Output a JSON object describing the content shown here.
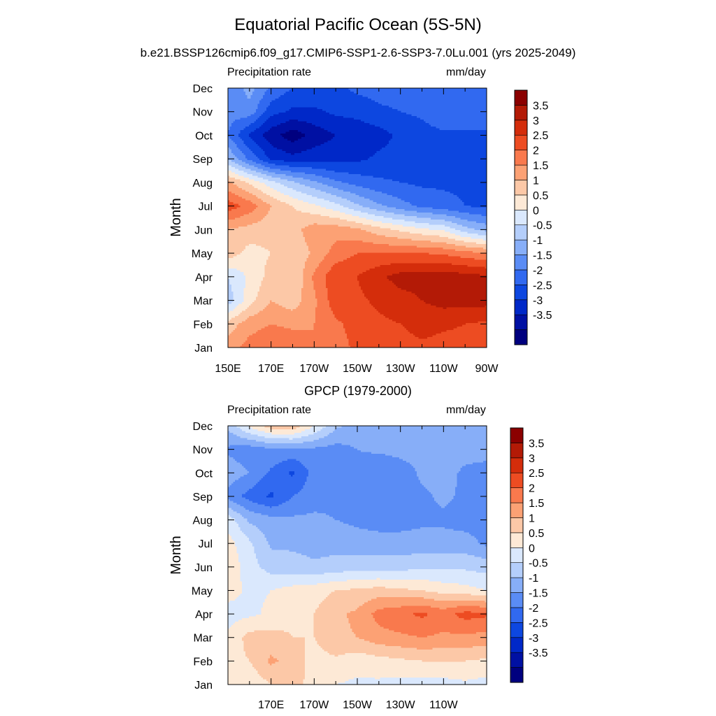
{
  "title": "Equatorial Pacific Ocean (5S-5N)",
  "subtitle": "b.e21.BSSP126cmip6.f09_g17.CMIP6-SSP1-2.6-SSP3-7.0Lu.001 (yrs 2025-2049)",
  "colors": {
    "levels": [
      "#00007f",
      "#0010a3",
      "#0028c8",
      "#0d47e0",
      "#3169f0",
      "#5a8cf5",
      "#87aef8",
      "#b4cefb",
      "#dae8fd",
      "#fde9d6",
      "#fcc8a7",
      "#fca174",
      "#f9794d",
      "#ed4c22",
      "#d42d0b",
      "#b31a06",
      "#8b0000"
    ]
  },
  "chart_data": [
    {
      "type": "heatmap",
      "panel": "model",
      "left_label": "Precipitation rate",
      "right_label": "mm/day",
      "ylabel": "Month",
      "x": [
        "150E",
        "160E",
        "170E",
        "180",
        "170W",
        "160W",
        "150W",
        "140W",
        "130W",
        "120W",
        "110W",
        "100W",
        "90W"
      ],
      "x_tick_labels": [
        "150E",
        "170E",
        "170W",
        "150W",
        "130W",
        "110W",
        "90W"
      ],
      "y": [
        "Jan",
        "Feb",
        "Mar",
        "Apr",
        "May",
        "Jun",
        "Jul",
        "Aug",
        "Sep",
        "Oct",
        "Nov",
        "Dec"
      ],
      "levels": [
        -3.5,
        -3,
        -2.5,
        -2,
        -1.5,
        -1,
        -0.5,
        0,
        0.5,
        1,
        1.5,
        2,
        2.5,
        3,
        3.5
      ],
      "colorbar_labels": [
        "3.5",
        "3",
        "2.5",
        "2",
        "1.5",
        "1",
        "0.5",
        "0",
        "-0.5",
        "-1",
        "-1.5",
        "-2",
        "-2.5",
        "-3",
        "-3.5"
      ],
      "values": [
        [
          1.8,
          2.2,
          2.4,
          2.3,
          2.0,
          2.3,
          2.6,
          2.7,
          2.8,
          2.9,
          2.8,
          2.8,
          2.8
        ],
        [
          1.2,
          1.8,
          2.0,
          1.9,
          2.0,
          2.4,
          2.7,
          2.9,
          3.0,
          3.2,
          3.1,
          3.0,
          2.9
        ],
        [
          -0.3,
          0.8,
          1.5,
          1.2,
          1.9,
          2.8,
          2.9,
          3.1,
          3.3,
          3.5,
          3.7,
          3.7,
          3.7
        ],
        [
          0.0,
          0.6,
          1.2,
          1.0,
          2.1,
          2.9,
          3.0,
          3.4,
          3.7,
          3.7,
          3.8,
          3.7,
          3.6
        ],
        [
          1.3,
          0.8,
          1.0,
          1.1,
          1.6,
          2.2,
          2.5,
          2.5,
          2.5,
          2.5,
          2.4,
          2.2,
          2.0
        ],
        [
          1.5,
          1.3,
          1.2,
          1.3,
          1.8,
          1.8,
          1.6,
          1.2,
          0.9,
          0.6,
          0.4,
          -0.3,
          -0.7
        ],
        [
          2.8,
          2.3,
          1.5,
          1.0,
          0.6,
          0.2,
          -0.4,
          -0.9,
          -1.3,
          -1.6,
          -1.8,
          -2.0,
          -2.1
        ],
        [
          1.6,
          0.9,
          0.2,
          -0.4,
          -0.9,
          -1.4,
          -1.7,
          -1.9,
          -2.0,
          -2.1,
          -2.1,
          -2.1,
          -2.1
        ],
        [
          -0.5,
          -1.6,
          -2.6,
          -2.8,
          -2.7,
          -2.7,
          -2.6,
          -2.4,
          -2.3,
          -2.2,
          -2.2,
          -2.2,
          -2.2
        ],
        [
          -1.5,
          -2.6,
          -3.3,
          -3.8,
          -3.3,
          -3.0,
          -2.9,
          -2.7,
          -2.4,
          -2.2,
          -2.1,
          -2.1,
          -2.1
        ],
        [
          -1.3,
          -1.2,
          -2.3,
          -2.6,
          -2.6,
          -2.4,
          -2.3,
          -2.1,
          -2.0,
          -1.9,
          -1.6,
          -1.6,
          -1.6
        ],
        [
          -1.5,
          -0.8,
          -1.6,
          -2.0,
          -2.1,
          -2.1,
          -1.9,
          -1.8,
          -1.8,
          -1.8,
          -1.8,
          -1.8,
          -1.9
        ]
      ]
    },
    {
      "type": "heatmap",
      "panel": "observations",
      "title": "GPCP (1979-2000)",
      "left_label": "Precipitation rate",
      "right_label": "mm/day",
      "ylabel": "Month",
      "x": [
        "150E",
        "160E",
        "170E",
        "180",
        "170W",
        "160W",
        "150W",
        "140W",
        "130W",
        "120W",
        "110W",
        "100W",
        "90W"
      ],
      "x_tick_labels": [
        "170E",
        "170W",
        "150W",
        "130W",
        "110W"
      ],
      "y": [
        "Jan",
        "Feb",
        "Mar",
        "Apr",
        "May",
        "Jun",
        "Jul",
        "Aug",
        "Sep",
        "Oct",
        "Nov",
        "Dec"
      ],
      "levels": [
        -3.5,
        -3,
        -2.5,
        -2,
        -1.5,
        -1,
        -0.5,
        0,
        0.5,
        1,
        1.5,
        2,
        2.5,
        3,
        3.5
      ],
      "colorbar_labels": [
        "3.5",
        "3",
        "2.5",
        "2",
        "1.5",
        "1",
        "0.5",
        "0",
        "-0.5",
        "-1",
        "-1.5",
        "-2",
        "-2.5",
        "-3",
        "-3.5"
      ],
      "values": [
        [
          0.5,
          0.6,
          1.0,
          1.2,
          0.8,
          0.5,
          0.4,
          0.4,
          0.3,
          0.3,
          0.3,
          0.4,
          0.3
        ],
        [
          0.8,
          1.0,
          1.6,
          1.3,
          0.8,
          0.9,
          0.7,
          0.8,
          0.9,
          1.0,
          1.0,
          1.0,
          0.9
        ],
        [
          0.6,
          1.2,
          1.2,
          1.0,
          1.0,
          1.4,
          1.5,
          1.8,
          1.9,
          2.0,
          1.9,
          1.9,
          1.8
        ],
        [
          0.3,
          0.4,
          0.6,
          0.9,
          1.0,
          1.4,
          1.6,
          2.2,
          2.4,
          2.6,
          2.3,
          2.7,
          2.6
        ],
        [
          0.7,
          0.4,
          0.5,
          0.7,
          0.8,
          1.0,
          1.1,
          1.2,
          1.1,
          1.0,
          0.8,
          0.7,
          0.5
        ],
        [
          0.9,
          0.2,
          -0.2,
          -0.3,
          -0.4,
          -0.3,
          -0.2,
          -0.2,
          -0.2,
          -0.1,
          -0.1,
          -0.1,
          -0.2
        ],
        [
          0.7,
          0.1,
          -0.6,
          -0.6,
          -0.7,
          -0.7,
          -0.8,
          -0.8,
          -0.8,
          -0.8,
          -0.8,
          -0.8,
          -1.1
        ],
        [
          0.3,
          -0.6,
          -0.8,
          -0.9,
          -0.9,
          -1.0,
          -1.1,
          -1.2,
          -1.2,
          -1.1,
          -1.1,
          -1.2,
          -1.2
        ],
        [
          -1.2,
          -1.7,
          -2.1,
          -1.5,
          -1.2,
          -1.1,
          -1.3,
          -1.4,
          -1.3,
          -1.1,
          -0.9,
          -1.1,
          -1.3
        ],
        [
          -0.7,
          -1.0,
          -1.6,
          -2.1,
          -1.3,
          -1.1,
          -1.1,
          -1.5,
          -1.3,
          -0.9,
          -0.8,
          -1.1,
          -1.2
        ],
        [
          -1.1,
          -1.3,
          -1.1,
          -1.1,
          -1.1,
          -1.2,
          -1.0,
          -0.9,
          -0.8,
          -0.8,
          -0.8,
          -0.8,
          -0.8
        ],
        [
          -0.4,
          0.6,
          1.3,
          1.4,
          0.5,
          -0.4,
          -0.7,
          -0.7,
          -0.7,
          -0.7,
          -0.7,
          -0.7,
          -0.7
        ]
      ]
    }
  ]
}
